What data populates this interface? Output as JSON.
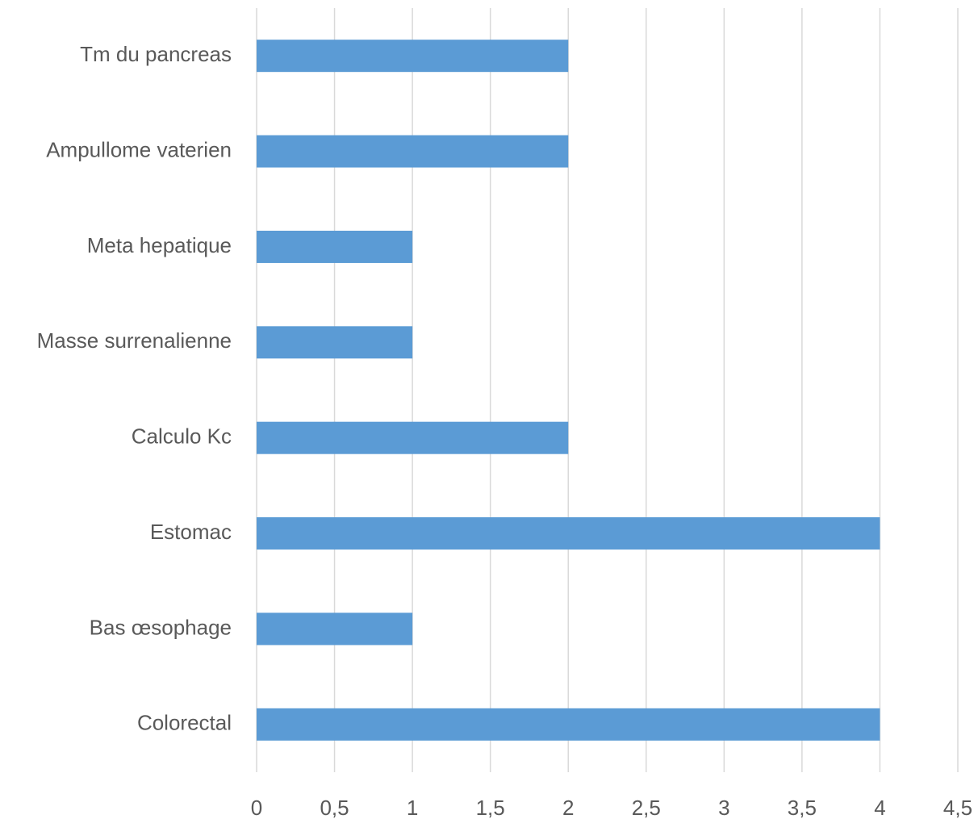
{
  "chart_data": {
    "type": "bar",
    "orientation": "horizontal",
    "categories": [
      "Colorectal",
      "Bas œsophage",
      "Estomac",
      "Calculo Kc",
      "Masse surrenalienne",
      "Meta hepatique",
      "Ampullome vaterien",
      "Tm du pancreas"
    ],
    "values": [
      4,
      1,
      4,
      2,
      1,
      1,
      2,
      2
    ],
    "xlim": [
      0,
      4.5
    ],
    "x_ticks": [
      0,
      0.5,
      1,
      1.5,
      2,
      2.5,
      3,
      3.5,
      4,
      4.5
    ],
    "x_tick_labels": [
      "0",
      "0,5",
      "1",
      "1,5",
      "2",
      "2,5",
      "3",
      "3,5",
      "4",
      "4,5"
    ],
    "title": "",
    "xlabel": "",
    "ylabel": "",
    "grid": "vertical",
    "legend": "none",
    "bar_color": "#5b9bd5",
    "grid_color": "#d9d9d9",
    "text_color": "#595959"
  }
}
